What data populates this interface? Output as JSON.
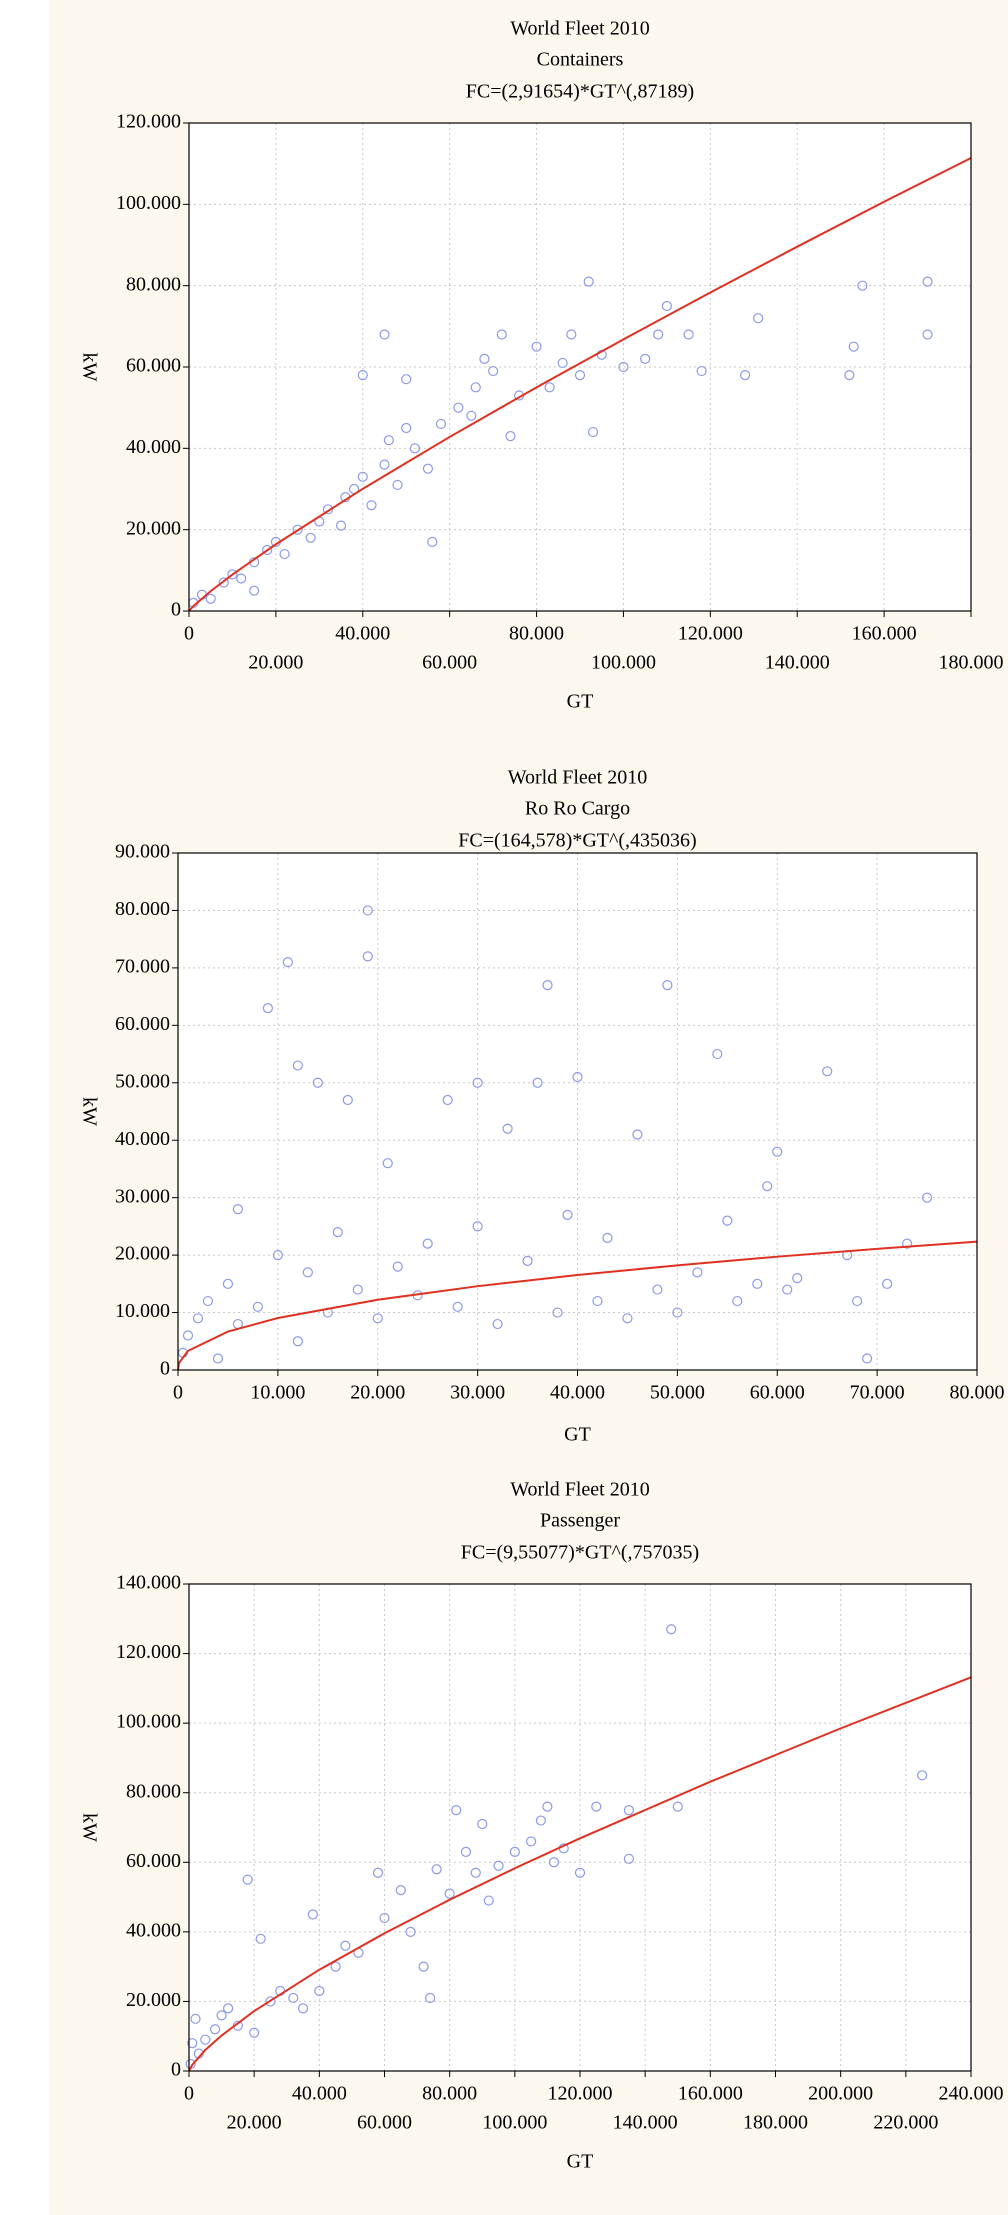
{
  "chart_data": [
    {
      "type": "scatter",
      "title": "World Fleet 2010",
      "subtitle": "Containers",
      "annotation": "FC=(2,91654)*GT^(,87189)",
      "x_label": "GT",
      "y_label": "kW",
      "color": "#8a9ae8",
      "grid": true,
      "xlim": [
        0,
        180000
      ],
      "ylim": [
        0,
        120000
      ],
      "xticks": [
        0,
        {
          "value": 20000,
          "label": "20.000"
        },
        {
          "value": 40000,
          "label": "40.000"
        },
        {
          "value": 60000,
          "label": "60.000"
        },
        {
          "value": 80000,
          "label": "80.000"
        },
        {
          "value": 100000,
          "label": "100.000"
        },
        {
          "value": 120000,
          "label": "120.000"
        },
        {
          "value": 140000,
          "label": "140.000"
        },
        {
          "value": 160000,
          "label": "160.000"
        },
        {
          "value": 180000,
          "label": "180.000"
        }
      ],
      "yticks": [
        0,
        {
          "value": 20000,
          "label": "20.000"
        },
        {
          "value": 40000,
          "label": "40.000"
        },
        {
          "value": 60000,
          "label": "60.000"
        },
        {
          "value": 80000,
          "label": "80.000"
        },
        {
          "value": 100000,
          "label": "100.000"
        },
        {
          "value": 120000,
          "label": "120.000"
        }
      ],
      "x": [
        1000,
        3000,
        5000,
        8000,
        10000,
        12000,
        15000,
        18000,
        20000,
        22000,
        25000,
        28000,
        30000,
        32000,
        35000,
        36000,
        38000,
        40000,
        40000,
        42000,
        45000,
        46000,
        48000,
        50000,
        50000,
        52000,
        55000,
        56000,
        58000,
        62000,
        65000,
        66000,
        68000,
        70000,
        72000,
        74000,
        76000,
        80000,
        83000,
        86000,
        88000,
        90000,
        92000,
        93000,
        95000,
        100000,
        105000,
        108000,
        110000,
        115000,
        118000,
        128000,
        131000,
        152000,
        153000,
        155000,
        170000,
        170000,
        45000,
        15000
      ],
      "values": [
        2000,
        4000,
        3000,
        7000,
        9000,
        8000,
        12000,
        15000,
        17000,
        14000,
        20000,
        18000,
        22000,
        25000,
        21000,
        28000,
        30000,
        33000,
        58000,
        26000,
        36000,
        42000,
        31000,
        45000,
        57000,
        40000,
        35000,
        17000,
        46000,
        50000,
        48000,
        55000,
        62000,
        59000,
        68000,
        43000,
        53000,
        65000,
        55000,
        61000,
        68000,
        58000,
        81000,
        44000,
        63000,
        60000,
        62000,
        68000,
        75000,
        68000,
        59000,
        58000,
        72000,
        58000,
        65000,
        80000,
        81000,
        68000,
        68000,
        5000
      ],
      "fit_line": {
        "color": "#e03020",
        "x": [
          0,
          1000,
          5000,
          10000,
          20000,
          40000,
          60000,
          80000,
          100000,
          120000,
          140000,
          160000,
          180000
        ],
        "values": [
          0,
          1204,
          4897,
          8966,
          16411,
          30040,
          42800,
          55003,
          66803,
          78320,
          89585,
          100638,
          111400
        ]
      }
    },
    {
      "type": "scatter",
      "title": "World Fleet 2010",
      "subtitle": "Ro Ro Cargo",
      "annotation": "FC=(164,578)*GT^(,435036)",
      "x_label": "GT",
      "y_label": "kW",
      "color": "#8a9ae8",
      "grid": true,
      "xlim": [
        0,
        80000
      ],
      "ylim": [
        0,
        90000
      ],
      "xticks": [
        0,
        {
          "value": 10000,
          "label": "10.000"
        },
        {
          "value": 20000,
          "label": "20.000"
        },
        {
          "value": 30000,
          "label": "30.000"
        },
        {
          "value": 40000,
          "label": "40.000"
        },
        {
          "value": 50000,
          "label": "50.000"
        },
        {
          "value": 60000,
          "label": "60.000"
        },
        {
          "value": 70000,
          "label": "70.000"
        },
        {
          "value": 80000,
          "label": "80.000"
        }
      ],
      "yticks": [
        0,
        {
          "value": 10000,
          "label": "10.000"
        },
        {
          "value": 20000,
          "label": "20.000"
        },
        {
          "value": 30000,
          "label": "30.000"
        },
        {
          "value": 40000,
          "label": "40.000"
        },
        {
          "value": 50000,
          "label": "50.000"
        },
        {
          "value": 60000,
          "label": "60.000"
        },
        {
          "value": 70000,
          "label": "70.000"
        },
        {
          "value": 80000,
          "label": "80.000"
        },
        {
          "value": 90000,
          "label": "90.000"
        }
      ],
      "x": [
        500,
        1000,
        2000,
        3000,
        4000,
        5000,
        6000,
        6000,
        8000,
        9000,
        10000,
        11000,
        12000,
        12000,
        13000,
        14000,
        15000,
        16000,
        17000,
        18000,
        19000,
        19000,
        20000,
        21000,
        22000,
        24000,
        25000,
        27000,
        28000,
        30000,
        30000,
        32000,
        33000,
        35000,
        36000,
        37000,
        38000,
        39000,
        40000,
        42000,
        43000,
        45000,
        46000,
        48000,
        49000,
        50000,
        52000,
        54000,
        55000,
        56000,
        58000,
        59000,
        60000,
        61000,
        62000,
        65000,
        67000,
        68000,
        69000,
        71000,
        75000,
        73000
      ],
      "values": [
        3000,
        6000,
        9000,
        12000,
        2000,
        15000,
        8000,
        28000,
        11000,
        63000,
        20000,
        71000,
        5000,
        53000,
        17000,
        50000,
        10000,
        24000,
        47000,
        14000,
        80000,
        72000,
        9000,
        36000,
        18000,
        13000,
        22000,
        47000,
        11000,
        25000,
        50000,
        8000,
        42000,
        19000,
        50000,
        67000,
        10000,
        27000,
        51000,
        12000,
        23000,
        9000,
        41000,
        14000,
        67000,
        10000,
        17000,
        55000,
        26000,
        12000,
        15000,
        32000,
        38000,
        14000,
        16000,
        52000,
        20000,
        12000,
        2000,
        15000,
        30000,
        22000
      ],
      "fit_line": {
        "color": "#e03020",
        "x": [
          0,
          100,
          1000,
          5000,
          10000,
          20000,
          30000,
          40000,
          50000,
          60000,
          70000,
          80000
        ],
        "values": [
          0,
          1220,
          3323,
          6691,
          9047,
          12230,
          14591,
          16535,
          18222,
          19725,
          21094,
          22358
        ]
      }
    },
    {
      "type": "scatter",
      "title": "World Fleet 2010",
      "subtitle": "Passenger",
      "annotation": "FC=(9,55077)*GT^(,757035)",
      "x_label": "GT",
      "y_label": "kW",
      "color": "#8a9ae8",
      "grid": true,
      "xlim": [
        0,
        240000
      ],
      "ylim": [
        0,
        140000
      ],
      "xticks": [
        0,
        {
          "value": 20000,
          "label": "20.000"
        },
        {
          "value": 40000,
          "label": "40.000"
        },
        {
          "value": 60000,
          "label": "60.000"
        },
        {
          "value": 80000,
          "label": "80.000"
        },
        {
          "value": 100000,
          "label": "100.000"
        },
        {
          "value": 120000,
          "label": "120.000"
        },
        {
          "value": 140000,
          "label": "140.000"
        },
        {
          "value": 160000,
          "label": "160.000"
        },
        {
          "value": 180000,
          "label": "180.000"
        },
        {
          "value": 200000,
          "label": "200.000"
        },
        {
          "value": 220000,
          "label": "220.000"
        },
        {
          "value": 240000,
          "label": "240.000"
        }
      ],
      "yticks": [
        0,
        {
          "value": 20000,
          "label": "20.000"
        },
        {
          "value": 40000,
          "label": "40.000"
        },
        {
          "value": 60000,
          "label": "60.000"
        },
        {
          "value": 80000,
          "label": "80.000"
        },
        {
          "value": 100000,
          "label": "100.000"
        },
        {
          "value": 120000,
          "label": "120.000"
        },
        {
          "value": 140000,
          "label": "140.000"
        }
      ],
      "x": [
        500,
        1000,
        2000,
        3000,
        5000,
        8000,
        10000,
        12000,
        15000,
        18000,
        20000,
        22000,
        25000,
        28000,
        32000,
        35000,
        38000,
        40000,
        45000,
        48000,
        52000,
        58000,
        60000,
        65000,
        68000,
        72000,
        74000,
        76000,
        80000,
        82000,
        85000,
        88000,
        90000,
        92000,
        95000,
        100000,
        105000,
        108000,
        110000,
        112000,
        115000,
        120000,
        125000,
        135000,
        135000,
        148000,
        150000,
        225000
      ],
      "values": [
        2000,
        8000,
        15000,
        5000,
        9000,
        12000,
        16000,
        18000,
        13000,
        55000,
        11000,
        38000,
        20000,
        23000,
        21000,
        18000,
        45000,
        23000,
        30000,
        36000,
        34000,
        57000,
        44000,
        52000,
        40000,
        30000,
        21000,
        58000,
        51000,
        75000,
        63000,
        57000,
        71000,
        49000,
        59000,
        63000,
        66000,
        72000,
        76000,
        60000,
        64000,
        57000,
        76000,
        61000,
        75000,
        127000,
        76000,
        85000
      ],
      "fit_line": {
        "color": "#e03020",
        "x": [
          0,
          1000,
          5000,
          10000,
          20000,
          40000,
          60000,
          80000,
          100000,
          120000,
          160000,
          200000,
          240000
        ],
        "values": [
          0,
          1783,
          6035,
          10197,
          17235,
          29123,
          39588,
          49225,
          58278,
          66893,
          83160,
          98496,
          113160
        ]
      }
    }
  ]
}
